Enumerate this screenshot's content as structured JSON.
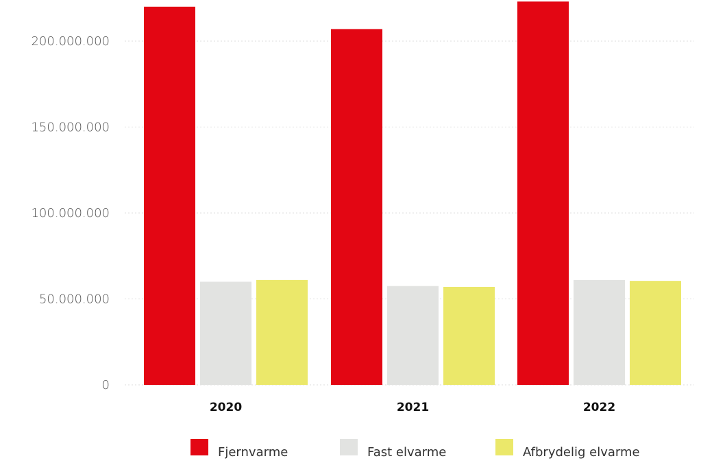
{
  "chart_data": {
    "type": "bar",
    "categories": [
      "2020",
      "2021",
      "2022"
    ],
    "series": [
      {
        "name": "Fjernvarme",
        "color": "#e30613",
        "values": [
          220000000,
          207000000,
          223000000
        ]
      },
      {
        "name": "Fast elvarme",
        "color": "#e2e3e1",
        "values": [
          60000000,
          57500000,
          61000000
        ]
      },
      {
        "name": "Afbrydelig elvarme",
        "color": "#ebe86a",
        "values": [
          61000000,
          57000000,
          60500000
        ]
      }
    ],
    "yticks": [
      0,
      50000000,
      100000000,
      150000000,
      200000000
    ],
    "ytick_labels": [
      "0",
      "50.000.000",
      "100.000.000",
      "150.000.000",
      "200.000.000"
    ],
    "ylim": [
      0,
      224000000
    ],
    "title": "",
    "xlabel": "",
    "ylabel": "",
    "grid": true,
    "legend_position": "bottom-center"
  }
}
